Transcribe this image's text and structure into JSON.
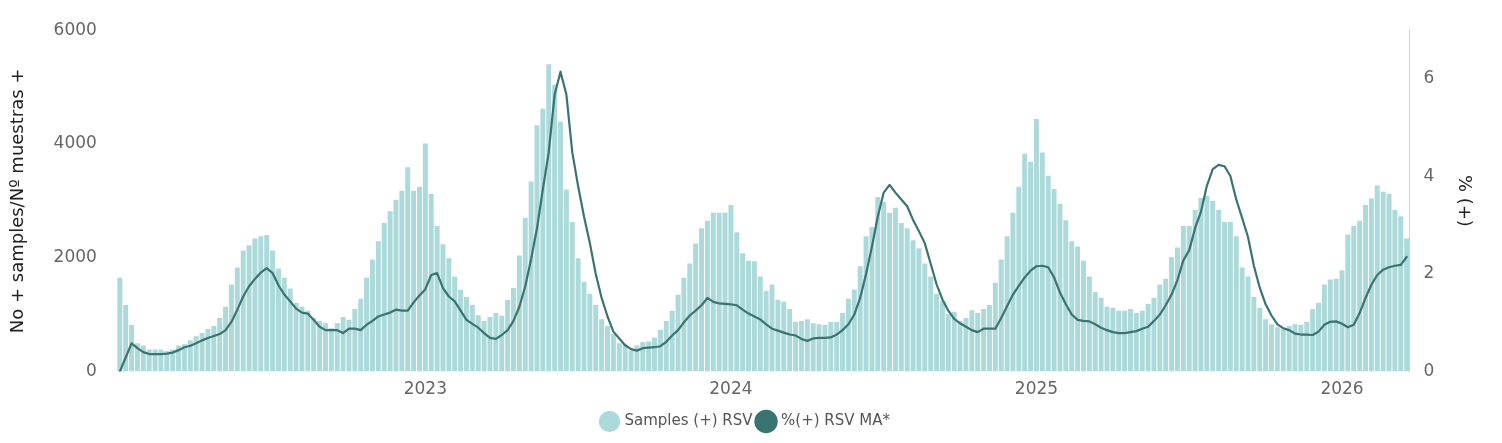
{
  "chart_data": {
    "type": "bar",
    "ylabel": "No + samples/Nº muestras +",
    "y2label": "% (+)",
    "ylim": [
      0,
      6000
    ],
    "yticks": [
      0,
      2000,
      4000,
      6000
    ],
    "y2lim": [
      0,
      7
    ],
    "y2ticks": [
      0,
      2,
      4,
      6
    ],
    "legend": "bottom",
    "marker": "none",
    "categories": [
      null,
      null,
      null,
      null,
      null,
      null,
      null,
      null,
      null,
      null,
      null,
      null,
      null,
      null,
      null,
      null,
      null,
      null,
      null,
      null,
      null,
      null,
      null,
      null,
      null,
      null,
      null,
      null,
      null,
      null,
      null,
      null,
      null,
      null,
      null,
      null,
      null,
      null,
      null,
      null,
      null,
      null,
      null,
      null,
      null,
      null,
      null,
      null,
      null,
      null,
      null,
      null,
      "2023",
      null,
      null,
      null,
      null,
      null,
      null,
      null,
      null,
      null,
      null,
      null,
      null,
      null,
      null,
      null,
      null,
      null,
      null,
      null,
      null,
      null,
      null,
      null,
      null,
      null,
      null,
      null,
      null,
      null,
      null,
      null,
      null,
      null,
      null,
      null,
      null,
      null,
      null,
      null,
      null,
      null,
      null,
      null,
      null,
      null,
      null,
      null,
      null,
      null,
      null,
      null,
      "2024",
      null,
      null,
      null,
      null,
      null,
      null,
      null,
      null,
      null,
      null,
      null,
      null,
      null,
      null,
      null,
      null,
      null,
      null,
      null,
      null,
      null,
      null,
      null,
      null,
      null,
      null,
      null,
      null,
      null,
      null,
      null,
      null,
      null,
      null,
      null,
      null,
      null,
      null,
      null,
      null,
      null,
      null,
      null,
      null,
      null,
      null,
      null,
      null,
      null,
      null,
      null,
      "2025",
      null,
      null,
      null,
      null,
      null,
      null,
      null,
      null,
      null,
      null,
      null,
      null,
      null,
      null,
      null,
      null,
      null,
      null,
      null,
      null,
      null,
      null,
      null,
      null,
      null,
      null,
      null,
      null,
      null,
      null,
      null,
      null,
      null,
      null,
      null,
      null,
      null,
      null,
      null,
      null,
      null,
      null,
      null,
      null,
      null,
      null,
      null,
      null,
      null,
      null,
      null,
      "2026",
      null,
      null,
      null,
      null,
      null,
      null,
      null,
      null,
      null,
      null,
      null
    ],
    "series": [
      {
        "name": "Samples (+) RSV",
        "color": "#acd9d9",
        "values": [
          1650,
          1170,
          820,
          500,
          460,
          390,
          390,
          390,
          360,
          390,
          460,
          480,
          550,
          620,
          680,
          750,
          800,
          940,
          1140,
          1530,
          1830,
          2130,
          2220,
          2340,
          2380,
          2400,
          2130,
          1810,
          1650,
          1460,
          1210,
          1140,
          1070,
          940,
          890,
          850,
          760,
          850,
          960,
          910,
          1100,
          1280,
          1650,
          1970,
          2290,
          2610,
          2820,
          3020,
          3180,
          3590,
          3180,
          3250,
          4010,
          3120,
          2560,
          2240,
          1990,
          1670,
          1440,
          1310,
          1170,
          990,
          890,
          960,
          1030,
          980,
          1260,
          1470,
          2040,
          2700,
          3340,
          4330,
          4620,
          5400,
          5040,
          4390,
          3200,
          2630,
          1990,
          1580,
          1370,
          1170,
          920,
          800,
          660,
          500,
          480,
          370,
          460,
          520,
          530,
          600,
          730,
          890,
          1070,
          1350,
          1650,
          1900,
          2250,
          2520,
          2650,
          2790,
          2790,
          2790,
          2930,
          2450,
          2080,
          1950,
          1940,
          1670,
          1420,
          1530,
          1260,
          1230,
          1100,
          870,
          890,
          920,
          850,
          830,
          820,
          870,
          870,
          1030,
          1280,
          1440,
          1850,
          2380,
          2540,
          3070,
          2980,
          2790,
          2880,
          2610,
          2520,
          2310,
          2170,
          1900,
          1670,
          1370,
          1240,
          1010,
          1050,
          890,
          940,
          1080,
          1030,
          1100,
          1170,
          1560,
          1970,
          2380,
          2790,
          3250,
          3830,
          3690,
          4440,
          3850,
          3440,
          3210,
          2950,
          2660,
          2290,
          2200,
          1950,
          1670,
          1400,
          1300,
          1140,
          1120,
          1070,
          1070,
          1100,
          1030,
          1070,
          1190,
          1300,
          1530,
          1630,
          2010,
          2180,
          2560,
          2560,
          2840,
          3050,
          3090,
          3000,
          2840,
          2630,
          2630,
          2380,
          1830,
          1670,
          1310,
          1120,
          920,
          830,
          780,
          760,
          800,
          830,
          820,
          870,
          1100,
          1210,
          1530,
          1620,
          1630,
          1780,
          2410,
          2560,
          2650,
          2930,
          3040,
          3270,
          3160,
          3120,
          2840,
          2730,
          2340
        ]
      },
      {
        "name": "%(+) RSV MA*",
        "type": "line",
        "axis": "y2",
        "color": "#3a7472",
        "values": [
          0,
          0.29,
          0.58,
          0.48,
          0.4,
          0.36,
          0.36,
          0.36,
          0.37,
          0.39,
          0.44,
          0.5,
          0.53,
          0.58,
          0.64,
          0.69,
          0.73,
          0.77,
          0.85,
          1.02,
          1.27,
          1.54,
          1.75,
          1.9,
          2.03,
          2.12,
          2.02,
          1.77,
          1.58,
          1.44,
          1.29,
          1.21,
          1.19,
          1.06,
          0.92,
          0.85,
          0.85,
          0.85,
          0.79,
          0.88,
          0.88,
          0.85,
          0.96,
          1.04,
          1.13,
          1.17,
          1.21,
          1.27,
          1.25,
          1.25,
          1.42,
          1.56,
          1.69,
          1.98,
          2.02,
          1.71,
          1.54,
          1.44,
          1.25,
          1.06,
          0.98,
          0.9,
          0.79,
          0.69,
          0.67,
          0.75,
          0.85,
          1.04,
          1.33,
          1.75,
          2.31,
          2.94,
          3.74,
          4.5,
          5.68,
          6.15,
          5.68,
          4.5,
          3.8,
          3.18,
          2.63,
          2.0,
          1.51,
          1.13,
          0.82,
          0.68,
          0.54,
          0.46,
          0.43,
          0.48,
          0.49,
          0.5,
          0.52,
          0.61,
          0.74,
          0.85,
          1.01,
          1.15,
          1.25,
          1.36,
          1.51,
          1.43,
          1.4,
          1.39,
          1.38,
          1.36,
          1.27,
          1.19,
          1.13,
          1.07,
          0.97,
          0.88,
          0.84,
          0.8,
          0.76,
          0.74,
          0.67,
          0.63,
          0.68,
          0.69,
          0.69,
          0.7,
          0.76,
          0.85,
          0.97,
          1.17,
          1.51,
          2.0,
          2.56,
          3.18,
          3.67,
          3.83,
          3.67,
          3.53,
          3.39,
          3.11,
          2.88,
          2.63,
          2.21,
          1.79,
          1.48,
          1.25,
          1.08,
          0.99,
          0.92,
          0.85,
          0.81,
          0.88,
          0.88,
          0.88,
          1.1,
          1.34,
          1.58,
          1.76,
          1.93,
          2.07,
          2.16,
          2.17,
          2.14,
          1.93,
          1.62,
          1.38,
          1.17,
          1.06,
          1.04,
          1.03,
          0.97,
          0.9,
          0.85,
          0.81,
          0.79,
          0.79,
          0.81,
          0.83,
          0.88,
          0.92,
          1.04,
          1.17,
          1.36,
          1.58,
          1.88,
          2.28,
          2.49,
          2.94,
          3.28,
          3.81,
          4.15,
          4.24,
          4.21,
          4.01,
          3.53,
          3.15,
          2.76,
          2.17,
          1.72,
          1.38,
          1.15,
          0.97,
          0.89,
          0.85,
          0.78,
          0.76,
          0.76,
          0.75,
          0.82,
          0.96,
          1.02,
          1.03,
          0.98,
          0.91,
          0.96,
          1.2,
          1.51,
          1.78,
          1.98,
          2.09,
          2.14,
          2.17,
          2.19,
          2.35
        ]
      }
    ]
  }
}
